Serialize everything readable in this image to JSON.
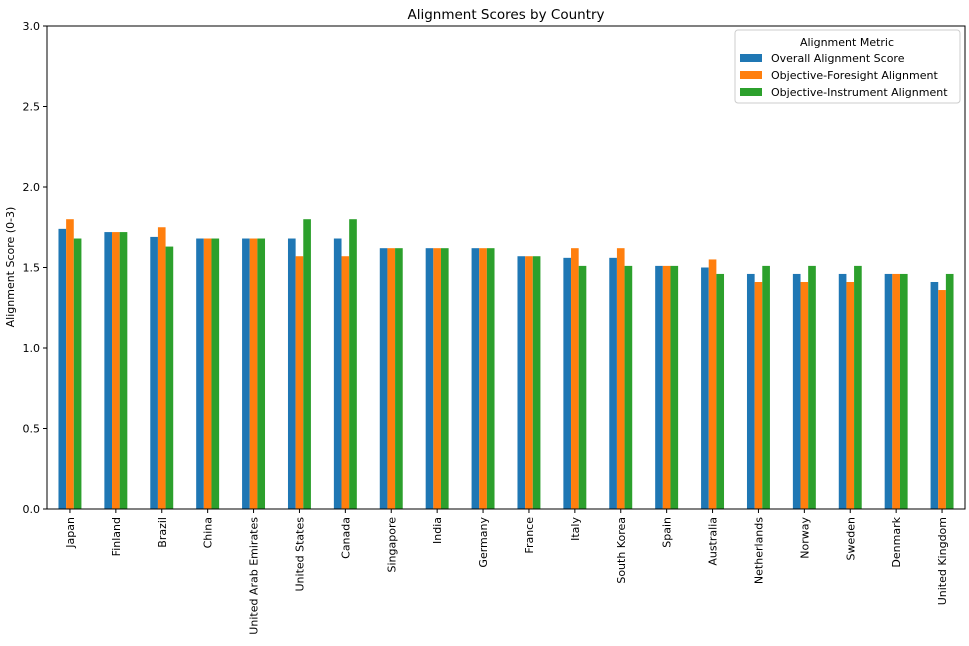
{
  "chart_data": {
    "type": "bar",
    "title": "Alignment Scores by Country",
    "xlabel": "",
    "ylabel": "Alignment Score (0-3)",
    "ylim": [
      0,
      3.0
    ],
    "yticks": [
      "0.0",
      "0.5",
      "1.0",
      "1.5",
      "2.0",
      "2.5",
      "3.0"
    ],
    "grid": false,
    "legend": {
      "title": "Alignment Metric",
      "placement": "top-right"
    },
    "categories": [
      "Japan",
      "Finland",
      "Brazil",
      "China",
      "United Arab Emirates",
      "United States",
      "Canada",
      "Singapore",
      "India",
      "Germany",
      "France",
      "Italy",
      "South Korea",
      "Spain",
      "Australia",
      "Netherlands",
      "Norway",
      "Sweden",
      "Denmark",
      "United Kingdom"
    ],
    "series": [
      {
        "name": "Overall Alignment Score",
        "color": "#1f77b4",
        "values": [
          1.74,
          1.72,
          1.69,
          1.68,
          1.68,
          1.68,
          1.68,
          1.62,
          1.62,
          1.62,
          1.57,
          1.56,
          1.56,
          1.51,
          1.5,
          1.46,
          1.46,
          1.46,
          1.46,
          1.41
        ]
      },
      {
        "name": "Objective-Foresight Alignment",
        "color": "#ff7f0e",
        "values": [
          1.8,
          1.72,
          1.75,
          1.68,
          1.68,
          1.57,
          1.57,
          1.62,
          1.62,
          1.62,
          1.57,
          1.62,
          1.62,
          1.51,
          1.55,
          1.41,
          1.41,
          1.41,
          1.46,
          1.36
        ]
      },
      {
        "name": "Objective-Instrument Alignment",
        "color": "#2ca02c",
        "values": [
          1.68,
          1.72,
          1.63,
          1.68,
          1.68,
          1.8,
          1.8,
          1.62,
          1.62,
          1.62,
          1.57,
          1.51,
          1.51,
          1.51,
          1.46,
          1.51,
          1.51,
          1.51,
          1.46,
          1.46
        ]
      }
    ]
  }
}
